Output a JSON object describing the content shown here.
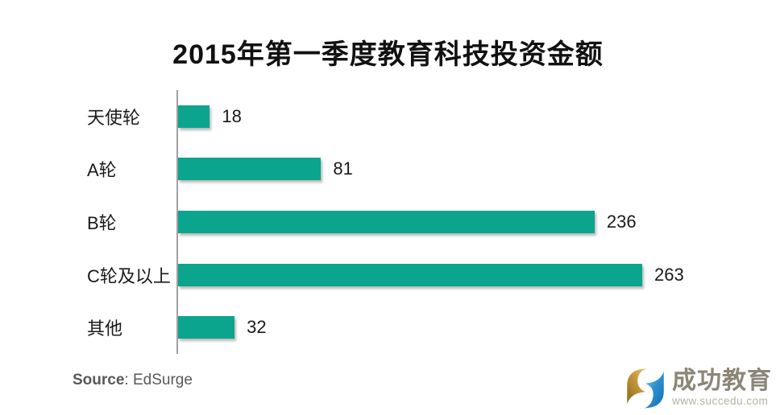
{
  "chart_data": {
    "type": "bar",
    "orientation": "horizontal",
    "title": "2015年第一季度教育科技投资金额",
    "categories": [
      "天使轮",
      "A轮",
      "B轮",
      "C轮及以上",
      "其他"
    ],
    "values": [
      18,
      81,
      236,
      263,
      32
    ],
    "xlim": [
      0,
      263
    ],
    "grid": false,
    "legend": "none",
    "bar_color": "#0aa58c",
    "axis_color": "#a0a0a0"
  },
  "source": {
    "label": "Source",
    "value": ": EdSurge"
  },
  "logo": {
    "brand": "成功教育",
    "url": "www.succedu.com",
    "icon": "interlocked-s-monogram-icon",
    "gold_color": "#c09238",
    "blue_color": "#2e8fd0"
  }
}
